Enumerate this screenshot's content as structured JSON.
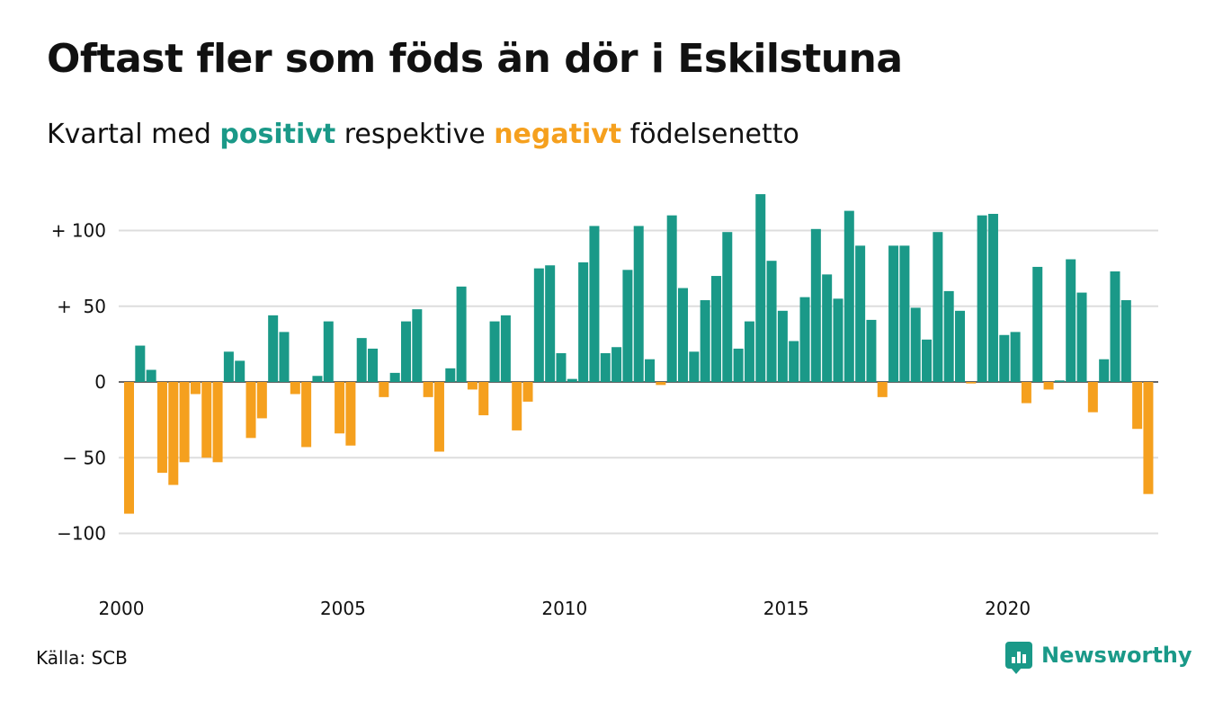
{
  "title": "Oftast fler som föds än dör i Eskilstuna",
  "subtitle": {
    "before": "Kvartal med ",
    "positive": "positivt",
    "middle": " respektive ",
    "negative": "negativt",
    "after": " födelsenetto"
  },
  "source": "Källa: SCB",
  "brand": "Newsworthy",
  "colors": {
    "positive": "#1a9988",
    "negative": "#f5a01e",
    "grid": "#dddddd"
  },
  "chart_data": {
    "type": "bar",
    "xlabel": "",
    "ylabel": "",
    "x_start_year": 2000,
    "ylim": [
      -130,
      130
    ],
    "y_ticks": [
      {
        "value": 100,
        "label": "+ 100"
      },
      {
        "value": 50,
        "label": "+  50"
      },
      {
        "value": 0,
        "label": "0"
      },
      {
        "value": -50,
        "label": "− 50"
      },
      {
        "value": -100,
        "label": "−100"
      }
    ],
    "x_ticks": [
      "2000",
      "2005",
      "2010",
      "2015",
      "2020"
    ],
    "values": [
      -87,
      24,
      8,
      -60,
      -68,
      -53,
      -8,
      -50,
      -53,
      20,
      14,
      -37,
      -24,
      44,
      33,
      -8,
      -43,
      4,
      40,
      -34,
      -42,
      29,
      22,
      -10,
      6,
      40,
      48,
      -10,
      -46,
      9,
      63,
      -5,
      -22,
      40,
      44,
      -32,
      -13,
      75,
      77,
      19,
      2,
      79,
      103,
      19,
      23,
      74,
      103,
      15,
      -2,
      110,
      62,
      20,
      54,
      70,
      99,
      22,
      40,
      124,
      80,
      47,
      27,
      56,
      101,
      71,
      55,
      113,
      90,
      41,
      -10,
      90,
      90,
      49,
      28,
      99,
      60,
      47,
      -1,
      110,
      111,
      31,
      33,
      -14,
      76,
      -5,
      1,
      81,
      59,
      -20,
      15,
      73,
      54,
      -31,
      -74
    ]
  }
}
